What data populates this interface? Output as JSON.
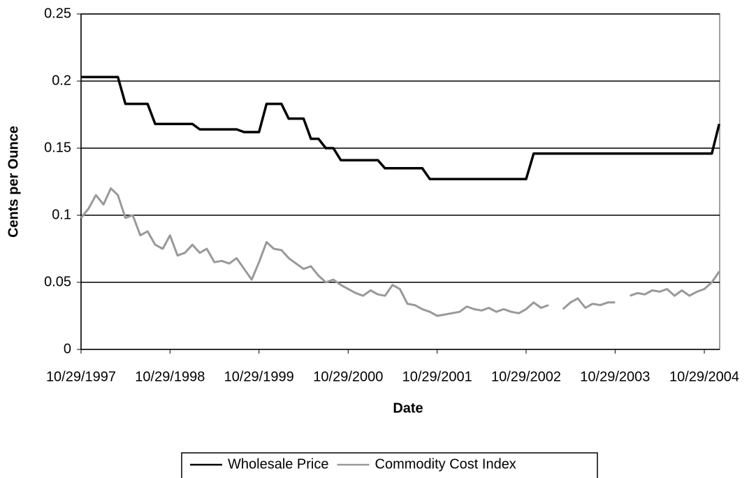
{
  "chart_data": {
    "type": "line",
    "x_label": "Date",
    "y_label": "Cents per Ounce",
    "x": [
      "10/29/1997",
      "11/29/1997",
      "12/29/1997",
      "1/29/1998",
      "2/28/1998",
      "3/29/1998",
      "4/29/1998",
      "5/29/1998",
      "6/29/1998",
      "7/29/1998",
      "8/29/1998",
      "9/29/1998",
      "10/29/1998",
      "11/29/1998",
      "12/29/1998",
      "1/29/1999",
      "2/28/1999",
      "3/29/1999",
      "4/29/1999",
      "5/29/1999",
      "6/29/1999",
      "7/29/1999",
      "8/29/1999",
      "9/29/1999",
      "10/29/1999",
      "11/29/1999",
      "12/29/1999",
      "1/29/2000",
      "2/28/2000",
      "3/29/2000",
      "4/29/2000",
      "5/29/2000",
      "6/29/2000",
      "7/29/2000",
      "8/29/2000",
      "9/29/2000",
      "10/29/2000",
      "11/29/2000",
      "12/29/2000",
      "1/29/2001",
      "2/28/2001",
      "3/29/2001",
      "4/29/2001",
      "5/29/2001",
      "6/29/2001",
      "7/29/2001",
      "8/29/2001",
      "9/29/2001",
      "10/29/2001",
      "11/29/2001",
      "12/29/2001",
      "1/29/2002",
      "2/28/2002",
      "3/29/2002",
      "4/29/2002",
      "5/29/2002",
      "6/29/2002",
      "7/29/2002",
      "8/29/2002",
      "9/29/2002",
      "10/29/2002",
      "11/29/2002",
      "12/29/2002",
      "1/29/2003",
      "2/28/2003",
      "3/29/2003",
      "4/29/2003",
      "5/29/2003",
      "6/29/2003",
      "7/29/2003",
      "8/29/2003",
      "9/29/2003",
      "10/29/2003",
      "11/29/2003",
      "12/29/2003",
      "1/29/2004",
      "2/28/2004",
      "3/29/2004",
      "4/29/2004",
      "5/29/2004",
      "6/29/2004",
      "7/29/2004",
      "8/29/2004",
      "9/29/2004",
      "10/29/2004",
      "11/29/2004",
      "12/29/2004"
    ],
    "series": [
      {
        "name": "Wholesale Price",
        "color": "#000000",
        "values": [
          0.203,
          0.203,
          0.203,
          0.203,
          0.203,
          0.203,
          0.183,
          0.183,
          0.183,
          0.183,
          0.168,
          0.168,
          0.168,
          0.168,
          0.168,
          0.168,
          0.164,
          0.164,
          0.164,
          0.164,
          0.164,
          0.164,
          0.162,
          0.162,
          0.162,
          0.183,
          0.183,
          0.183,
          0.172,
          0.172,
          0.172,
          0.157,
          0.157,
          0.15,
          0.15,
          0.141,
          0.141,
          0.141,
          0.141,
          0.141,
          0.141,
          0.135,
          0.135,
          0.135,
          0.135,
          0.135,
          0.135,
          0.127,
          0.127,
          0.127,
          0.127,
          0.127,
          0.127,
          0.127,
          0.127,
          0.127,
          0.127,
          0.127,
          0.127,
          0.127,
          0.127,
          0.146,
          0.146,
          0.146,
          0.146,
          0.146,
          0.146,
          0.146,
          0.146,
          0.146,
          0.146,
          0.146,
          0.146,
          0.146,
          0.146,
          0.146,
          0.146,
          0.146,
          0.146,
          0.146,
          0.146,
          0.146,
          0.146,
          0.146,
          0.146,
          0.146,
          0.168
        ]
      },
      {
        "name": "Commodity Cost Index",
        "color": "#999999",
        "values": [
          0.098,
          0.105,
          0.115,
          0.108,
          0.12,
          0.115,
          0.098,
          0.1,
          0.085,
          0.088,
          0.078,
          0.075,
          0.085,
          0.07,
          0.072,
          0.078,
          0.072,
          0.075,
          0.065,
          0.066,
          0.064,
          0.068,
          0.06,
          0.052,
          0.065,
          0.08,
          0.075,
          0.074,
          0.068,
          0.064,
          0.06,
          0.062,
          0.055,
          0.05,
          0.052,
          0.048,
          0.045,
          0.042,
          0.04,
          0.044,
          0.041,
          0.04,
          0.048,
          0.045,
          0.034,
          0.033,
          0.03,
          0.028,
          0.025,
          0.026,
          0.027,
          0.028,
          0.032,
          0.03,
          0.029,
          0.031,
          0.028,
          0.03,
          0.028,
          0.027,
          0.03,
          0.035,
          0.031,
          0.033,
          null,
          0.03,
          0.035,
          0.038,
          0.031,
          0.034,
          0.033,
          0.035,
          0.035,
          null,
          0.04,
          0.042,
          0.041,
          0.044,
          0.043,
          0.045,
          0.04,
          0.044,
          0.04,
          0.043,
          0.045,
          0.05,
          0.058
        ]
      }
    ],
    "xlim": [
      "10/29/1997",
      "12/31/2004"
    ],
    "xticks": [
      "10/29/1997",
      "10/29/1998",
      "10/29/1999",
      "10/29/2000",
      "10/29/2001",
      "10/29/2002",
      "10/29/2003",
      "10/29/2004"
    ],
    "ylim": [
      0,
      0.25
    ],
    "yticks": [
      0,
      0.05,
      0.1,
      0.15,
      0.2,
      0.25
    ],
    "grid": true,
    "legend": "bottom"
  }
}
